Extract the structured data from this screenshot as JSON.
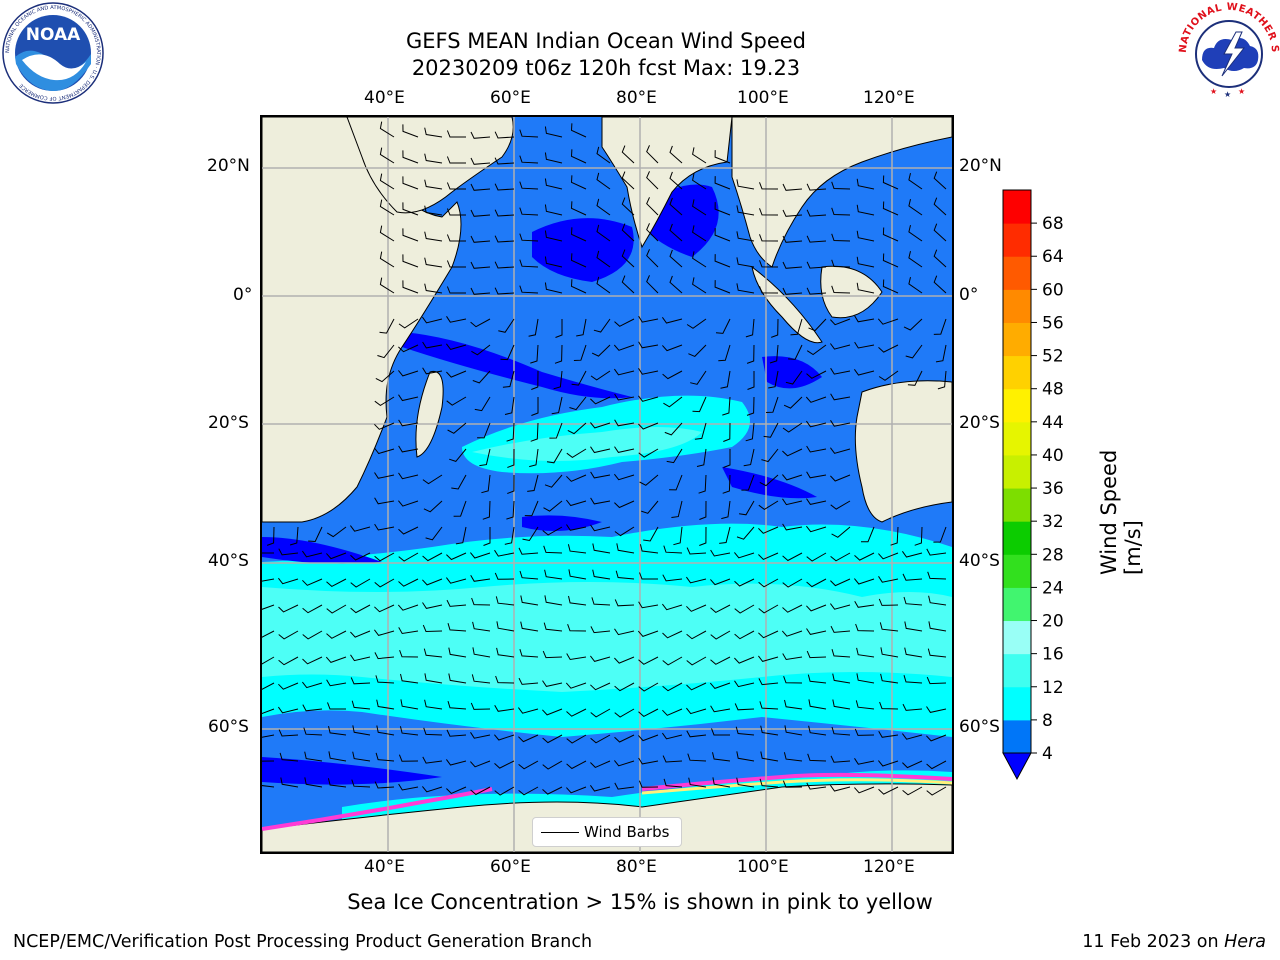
{
  "title": {
    "line1": "GEFS MEAN Indian Ocean Wind Speed",
    "line2": "20230209 t06z 120h fcst   Max: 19.23"
  },
  "map": {
    "region": "Indian Ocean",
    "lon_labels": [
      "40°E",
      "60°E",
      "80°E",
      "100°E",
      "120°E"
    ],
    "lat_labels": [
      "20°N",
      "0°",
      "20°S",
      "40°S",
      "60°S"
    ],
    "lon_range": [
      20,
      130
    ],
    "lat_range": [
      -73,
      28
    ],
    "grid": true,
    "colors": {
      "land": "#eeeedc",
      "ocean_weak": "#0000ff",
      "ocean_mid": "#1f7af8",
      "ocean_strong": "#00ffff",
      "ocean_stronger": "#4dfff6",
      "ice_pink": "#ff3bd5",
      "ice_yellow": "#fff07a"
    }
  },
  "legend": {
    "label": "Wind Barbs"
  },
  "colorbar": {
    "title": "Wind Speed [m/s]",
    "ticks": [
      "4",
      "8",
      "12",
      "16",
      "20",
      "24",
      "28",
      "32",
      "36",
      "40",
      "44",
      "48",
      "52",
      "56",
      "60",
      "64",
      "68"
    ],
    "colors": [
      "#0076f8",
      "#00ffff",
      "#3ffff0",
      "#99fff6",
      "#41f56f",
      "#32e01e",
      "#0ccc00",
      "#7dde00",
      "#c8f000",
      "#e6f500",
      "#fff100",
      "#ffd100",
      "#ffac00",
      "#ff8a00",
      "#ff5a00",
      "#ff2c00",
      "#fe0000"
    ],
    "extend_low_color": "#0000ff"
  },
  "caption": "Sea Ice Concentration > 15% is shown in pink to yellow",
  "footer": {
    "left": "NCEP/EMC/Verification Post Processing Product Generation Branch",
    "right_prefix": "11 Feb 2023 on ",
    "right_system": "Hera"
  },
  "logos": {
    "noaa": {
      "text": "NOAA",
      "ring_text": "NATIONAL OCEANIC AND ATMOSPHERIC ADMINISTRATION · U.S. DEPARTMENT OF COMMERCE"
    },
    "nws": {
      "ring_text": "NATIONAL WEATHER SERVICE"
    }
  }
}
